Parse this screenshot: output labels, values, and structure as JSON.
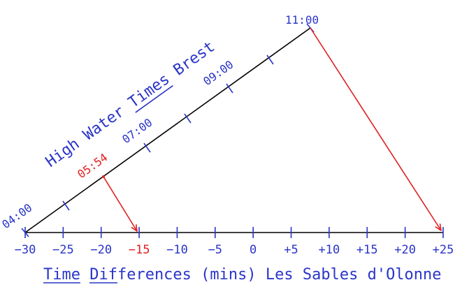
{
  "diagram": {
    "title": "High Water Times Brest",
    "line_labels": [
      "04:00",
      "05:54",
      "07:00",
      "09:00",
      "11:00"
    ],
    "axis_ticks": [
      "−30",
      "−25",
      "−20",
      "−15",
      "−10",
      "−5",
      "0",
      "+5",
      "+10",
      "+15",
      "+20",
      "+25"
    ],
    "axis_title": "Time Differences (mins) Les Sables d'Olonne"
  }
}
